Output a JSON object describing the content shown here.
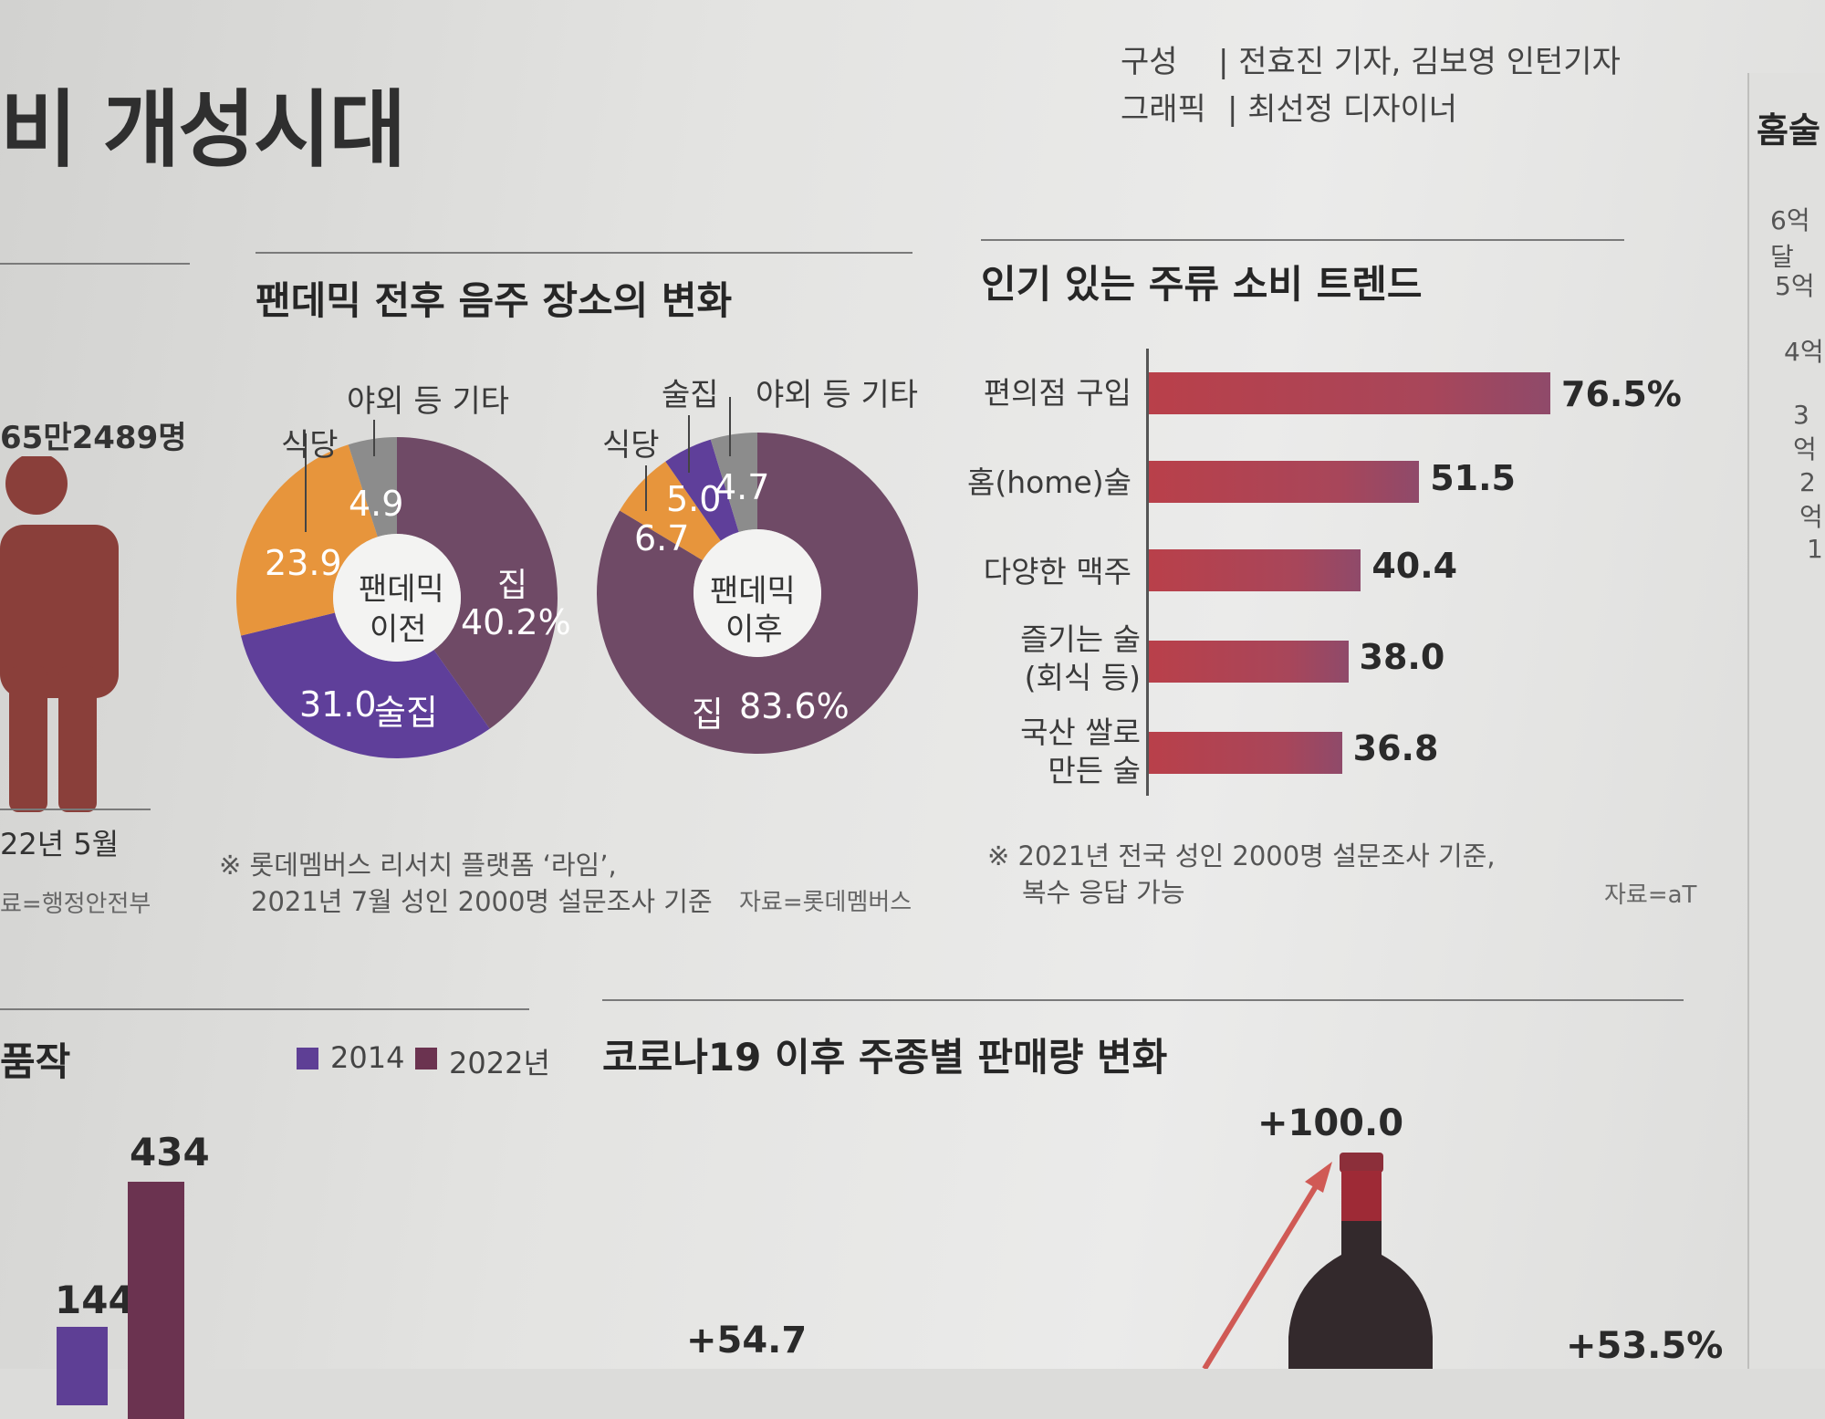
{
  "header": {
    "title_fragment": "비 개성시대",
    "credit_role1": "구성",
    "credit_names1": "| 전효진 기자, 김보영 인턴기자",
    "credit_role2": "그래픽",
    "credit_names2": "| 최선정 디자이너"
  },
  "left_panel": {
    "count": "65만2489명",
    "date": "22년 5월",
    "source": "료=행정안전부"
  },
  "colors": {
    "home": "#6f4a66",
    "pub": "#5f3f9a",
    "restaurant": "#e7953c",
    "other": "#8c8c8c",
    "bar": "#b9404a",
    "person": "#8a3f3a",
    "bottom_bar_2014": "#5e3f95",
    "bottom_bar_2022": "#6b3350"
  },
  "chart_data": [
    {
      "type": "pie",
      "title": "팬데믹 전후 음주 장소의 변화",
      "center_label": [
        "팬데믹",
        "이전"
      ],
      "slices": [
        {
          "label": "집",
          "value": 40.2,
          "display": "40.2%"
        },
        {
          "label": "술집",
          "value": 31.0,
          "display": "31.0"
        },
        {
          "label": "식당",
          "value": 23.9,
          "display": "23.9"
        },
        {
          "label": "야외 등 기타",
          "value": 4.9,
          "display": "4.9"
        }
      ]
    },
    {
      "type": "pie",
      "center_label": [
        "팬데믹",
        "이후"
      ],
      "slices": [
        {
          "label": "집",
          "value": 83.6,
          "display": "83.6%"
        },
        {
          "label": "식당",
          "value": 6.7,
          "display": "6.7"
        },
        {
          "label": "술집",
          "value": 5.0,
          "display": "5.0"
        },
        {
          "label": "야외 등 기타",
          "value": 4.7,
          "display": "4.7"
        }
      ]
    },
    {
      "type": "bar",
      "orientation": "horizontal",
      "title": "인기 있는 주류 소비 트렌드",
      "categories": [
        "편의점 구입",
        "홈(home)술",
        "다양한 맥주",
        "즐기는 술 (회식 등)",
        "국산 쌀로 만든 술"
      ],
      "values": [
        76.5,
        51.5,
        40.4,
        38.0,
        36.8
      ],
      "value_labels": [
        "76.5%",
        "51.5",
        "40.4",
        "38.0",
        "36.8"
      ],
      "xlim": [
        0,
        100
      ]
    },
    {
      "type": "bar",
      "title_fragment": "품작",
      "legend": [
        "2014",
        "2022년"
      ],
      "value_labels": [
        "144",
        "434"
      ],
      "values": [
        144,
        434
      ]
    },
    {
      "type": "bar",
      "title": "코로나19 이후 주종별 판매량 변화",
      "value_labels": [
        "+54.7",
        "+100.0",
        "+53.5%"
      ]
    }
  ],
  "pie_notes": {
    "note1": "※ 롯데멤버스 리서치 플랫폼 ‘라임’,",
    "note2": "2021년 7월 성인 2000명 설문조사 기준",
    "source": "자료=롯데멤버스"
  },
  "bar_notes": {
    "note1": "※ 2021년 전국 성인 2000명 설문조사 기준,",
    "note2": "복수 응답 가능",
    "source": "자료=aT"
  },
  "right_edge": {
    "title": "홈술",
    "ticks": [
      "6억달",
      "5억",
      "4억",
      "3억",
      "2억",
      "1"
    ]
  }
}
